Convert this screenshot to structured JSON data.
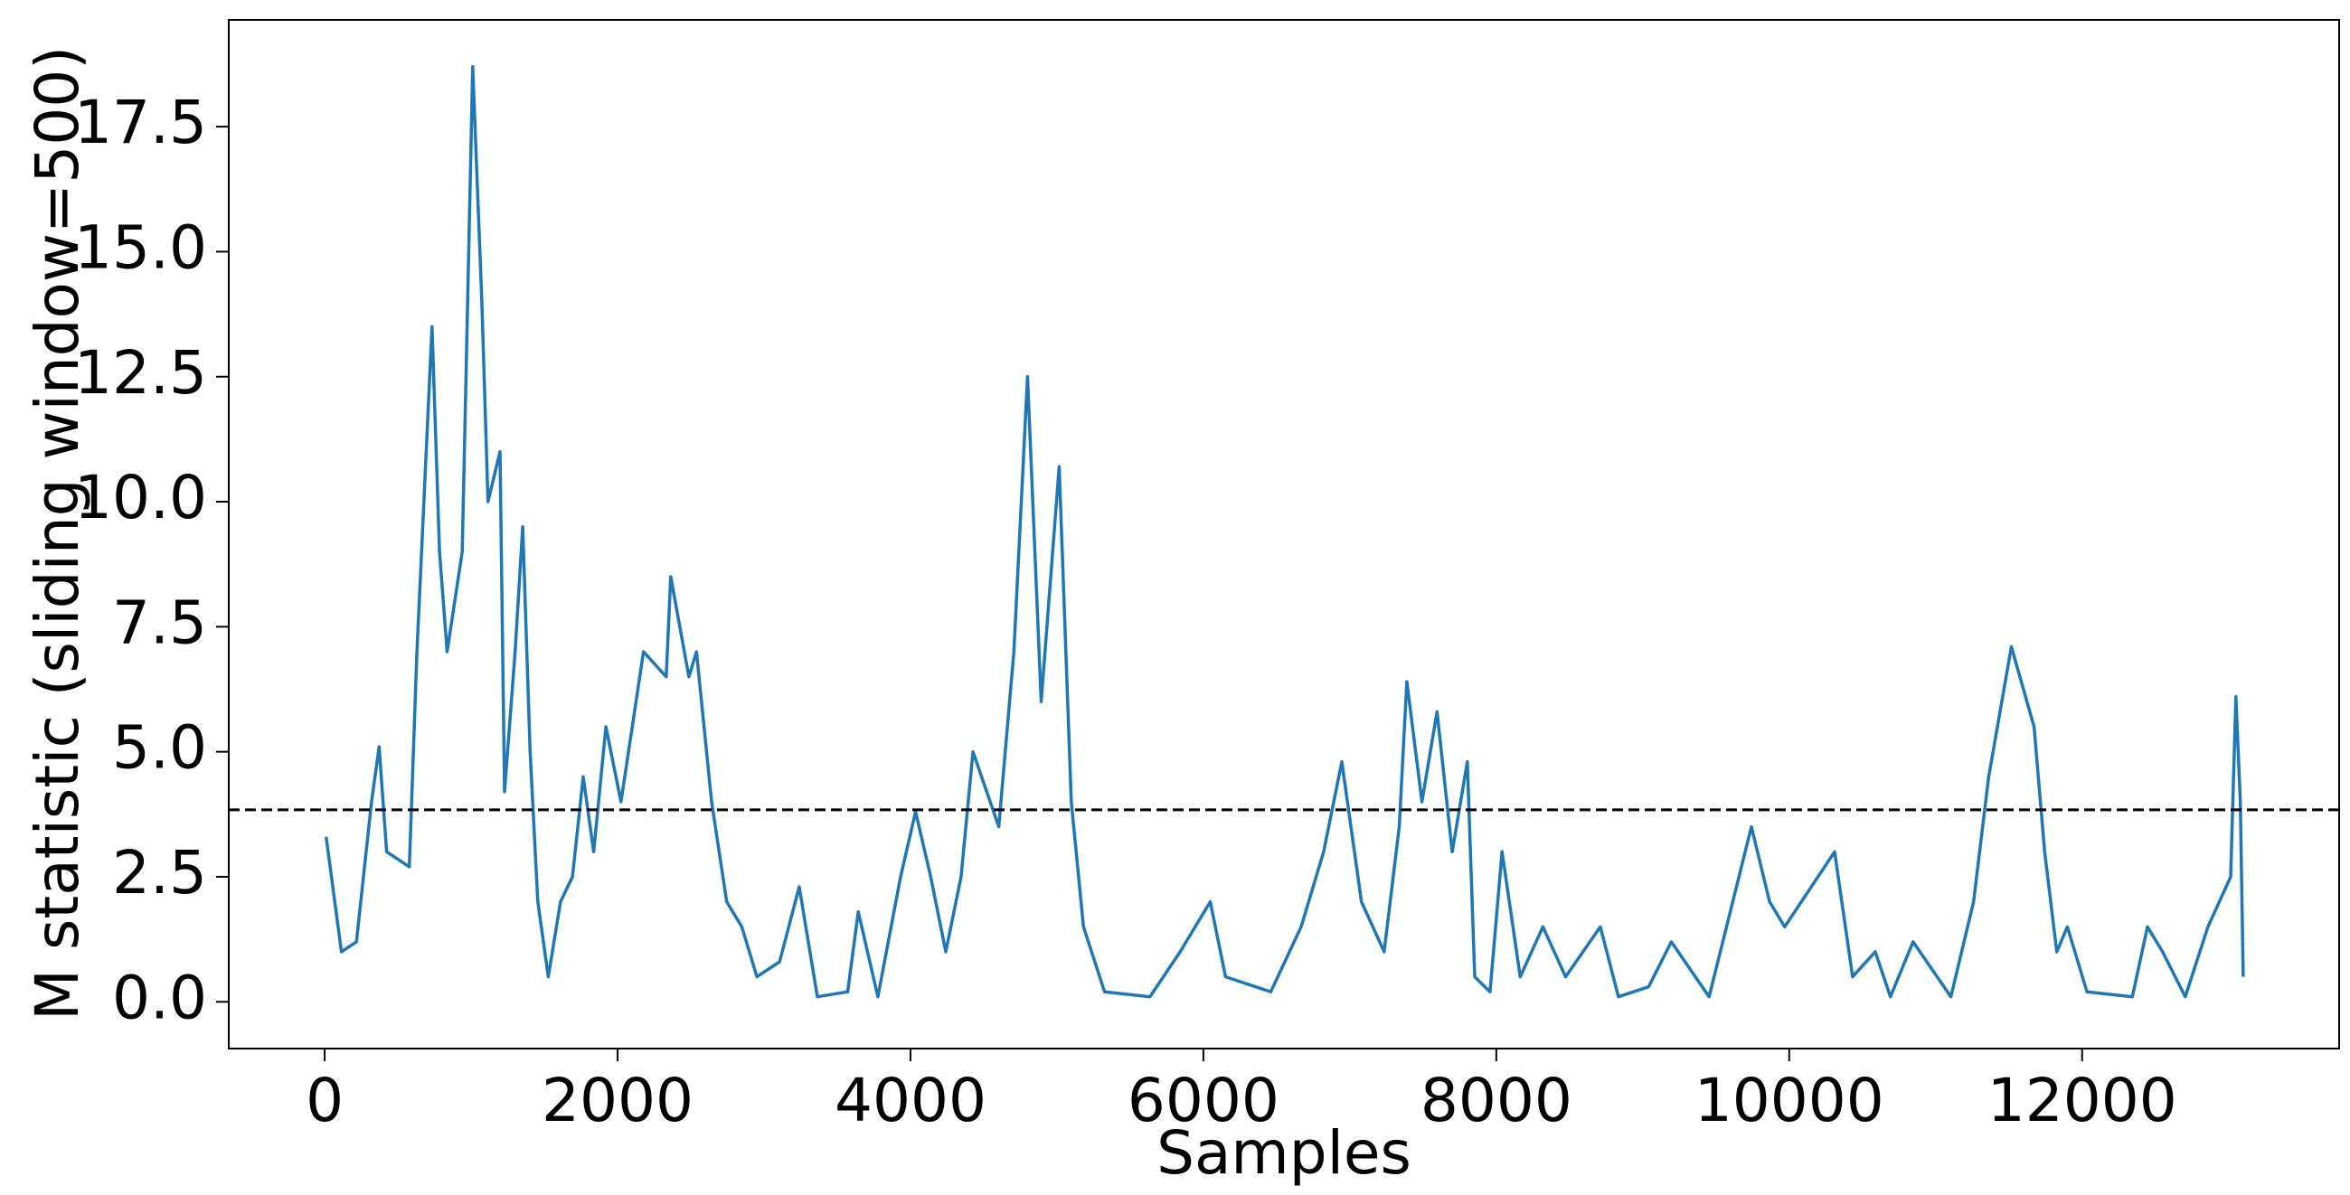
{
  "chart_data": {
    "type": "line",
    "xlabel": "Samples",
    "ylabel": "M statistic (sliding window=500)",
    "xlim": [
      -655,
      13755
    ],
    "ylim": [
      -0.935,
      19.635
    ],
    "xticks": [
      0,
      2000,
      4000,
      6000,
      8000,
      10000,
      12000
    ],
    "yticks": [
      {
        "value": 0,
        "label": "0.0"
      },
      2.5,
      {
        "value": 5,
        "label": "5.0"
      },
      7.5,
      {
        "value": 10,
        "label": "10.0"
      },
      12.5,
      {
        "value": 15,
        "label": "15.0"
      },
      17.5
    ],
    "threshold": 3.84,
    "threshold_color": "#000000",
    "grid": false,
    "series": [
      {
        "color": "#1f77b4",
        "x": [
          10,
          114,
          217,
          320,
          372,
          423,
          578,
          630,
          733,
          784,
          836,
          939,
          1011,
          1073,
          1115,
          1197,
          1228,
          1300,
          1352,
          1403,
          1455,
          1527,
          1610,
          1692,
          1765,
          1837,
          1920,
          2023,
          2177,
          2332,
          2363,
          2487,
          2539,
          2642,
          2745,
          2848,
          2951,
          3106,
          3240,
          3364,
          3571,
          3643,
          3777,
          3932,
          4035,
          4138,
          4241,
          4345,
          4427,
          4603,
          4706,
          4799,
          4892,
          5015,
          5098,
          5181,
          5325,
          5635,
          5841,
          6047,
          6151,
          6460,
          6667,
          6821,
          6945,
          7079,
          7234,
          7337,
          7389,
          7492,
          7595,
          7699,
          7802,
          7853,
          7957,
          8039,
          8163,
          8318,
          8473,
          8710,
          8834,
          9040,
          9195,
          9453,
          9742,
          9866,
          9969,
          10310,
          10433,
          10588,
          10691,
          10846,
          11104,
          11259,
          11362,
          11517,
          11672,
          11744,
          11827,
          11899,
          12033,
          12343,
          12446,
          12549,
          12704,
          12859,
          13014,
          13050,
          13080,
          13100
        ],
        "values": [
          3.3,
          1.0,
          1.2,
          4.0,
          5.1,
          3.0,
          2.7,
          7.0,
          13.5,
          9.0,
          7.0,
          9.0,
          18.7,
          14.0,
          10.0,
          11.0,
          4.2,
          7.0,
          9.5,
          5.0,
          2.0,
          0.5,
          2.0,
          2.5,
          4.5,
          3.0,
          5.5,
          4.0,
          7.0,
          6.5,
          8.5,
          6.5,
          7.0,
          4.0,
          2.0,
          1.5,
          0.5,
          0.8,
          2.3,
          0.1,
          0.2,
          1.8,
          0.1,
          2.5,
          3.8,
          2.5,
          1.0,
          2.5,
          5.0,
          3.5,
          7.0,
          12.5,
          6.0,
          10.7,
          4.0,
          1.5,
          0.2,
          0.1,
          1.0,
          2.0,
          0.5,
          0.2,
          1.5,
          3.0,
          4.8,
          2.0,
          1.0,
          3.5,
          6.4,
          4.0,
          5.8,
          3.0,
          4.8,
          0.5,
          0.2,
          3.0,
          0.5,
          1.5,
          0.5,
          1.5,
          0.1,
          0.3,
          1.2,
          0.1,
          3.5,
          2.0,
          1.5,
          3.0,
          0.5,
          1.0,
          0.1,
          1.2,
          0.1,
          2.0,
          4.5,
          7.1,
          5.5,
          3.0,
          1.0,
          1.5,
          0.2,
          0.1,
          1.5,
          1.0,
          0.1,
          1.5,
          2.5,
          6.1,
          4.0,
          0.5
        ]
      }
    ]
  }
}
